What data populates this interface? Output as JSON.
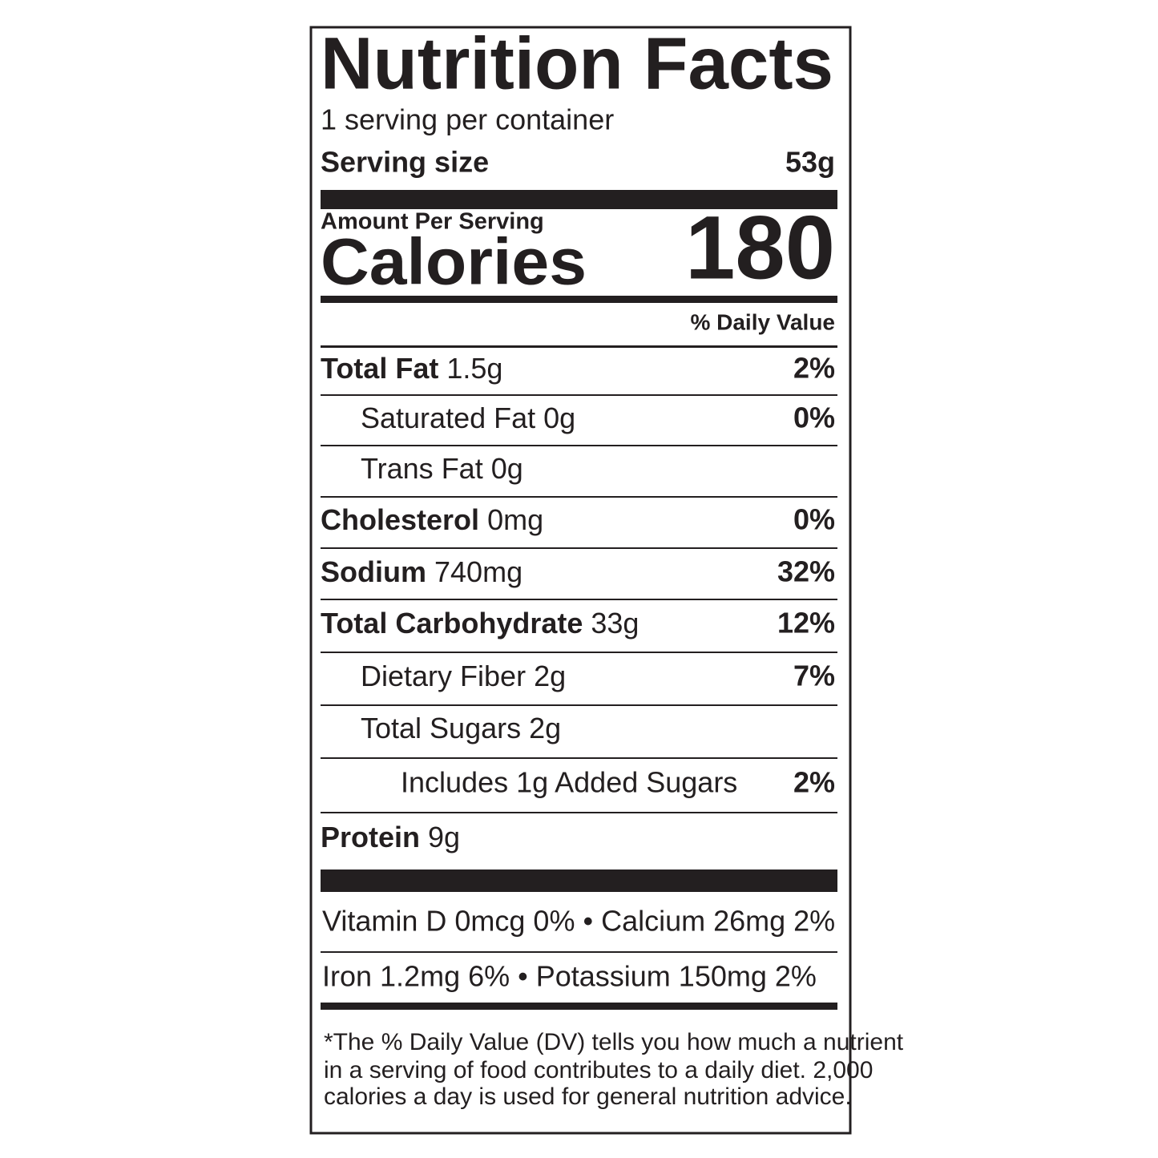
{
  "title": "Nutrition Facts",
  "servings_per_container": "1 serving per container",
  "serving_size": {
    "label": "Serving size",
    "value": "53g"
  },
  "amount_per_serving": "Amount Per Serving",
  "calories": {
    "label": "Calories",
    "value": 180
  },
  "daily_value_header": "% Daily Value",
  "nutrients": [
    {
      "name": "Total Fat",
      "amount": "1.5g",
      "dv": "2%"
    },
    {
      "name": "Saturated Fat",
      "amount": "0g",
      "dv": "0%"
    },
    {
      "name": "Trans Fat",
      "amount": "0g"
    },
    {
      "name": "Cholesterol",
      "amount": "0mg",
      "dv": "0%"
    },
    {
      "name": "Sodium",
      "amount": "740mg",
      "dv": "32%"
    },
    {
      "name": "Total Carbohydrate",
      "amount": "33g",
      "dv": "12%"
    },
    {
      "name": "Dietary Fiber",
      "amount": "2g",
      "dv": "7%"
    },
    {
      "name": "Total Sugars",
      "amount": "2g"
    },
    {
      "name": "Includes 1g Added Sugars",
      "dv": "2%"
    },
    {
      "name": "Protein",
      "amount": "9g"
    }
  ],
  "micronutrients": [
    "Vitamin D 0mcg 0% • Calcium 26mg 2%",
    "Iron 1.2mg 6% • Potassium 150mg 2%"
  ],
  "footnote": [
    "*The % Daily Value (DV) tells you how much a nutrient",
    "in a serving of food contributes to a daily diet. 2,000",
    "calories a day is used for general nutrition advice."
  ]
}
